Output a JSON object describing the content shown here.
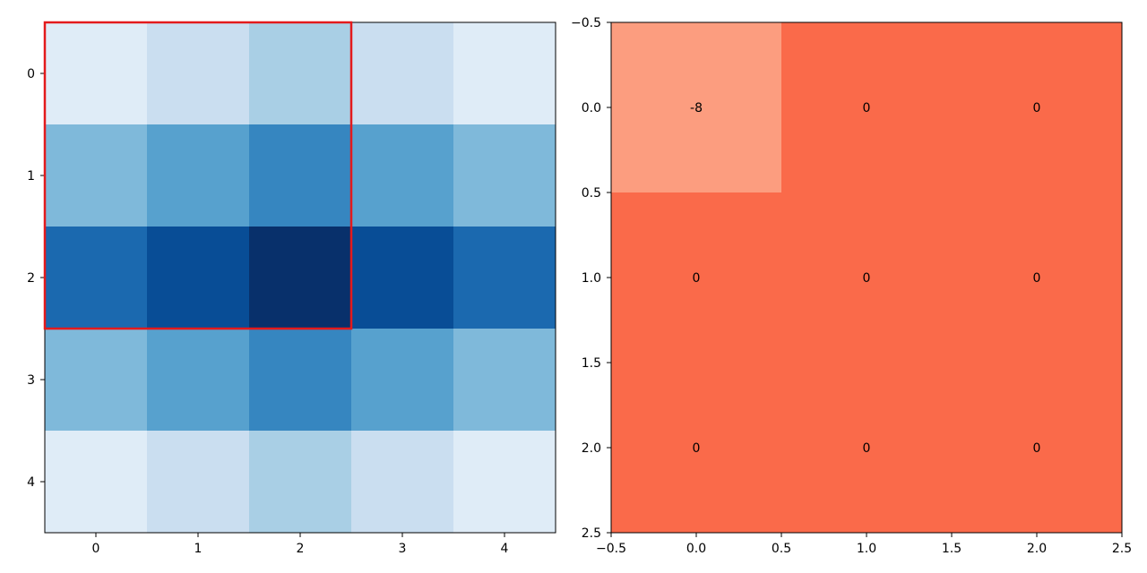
{
  "chart_data": [
    {
      "type": "heatmap",
      "colormap": "Blues",
      "rows": [
        "0",
        "1",
        "2",
        "3",
        "4"
      ],
      "cols": [
        "0",
        "1",
        "2",
        "3",
        "4"
      ],
      "values": [
        [
          1,
          2,
          3,
          2,
          1
        ],
        [
          4,
          5,
          6,
          5,
          4
        ],
        [
          7,
          8,
          9,
          8,
          7
        ],
        [
          4,
          5,
          6,
          5,
          4
        ],
        [
          1,
          2,
          3,
          2,
          1
        ]
      ],
      "x_ticks": [
        "0",
        "1",
        "2",
        "3",
        "4"
      ],
      "y_ticks": [
        "0",
        "1",
        "2",
        "3",
        "4"
      ],
      "xlim": [
        -0.5,
        4.5
      ],
      "ylim": [
        4.5,
        -0.5
      ],
      "highlight_box": {
        "x_from": -0.5,
        "x_to": 2.5,
        "y_from": -0.5,
        "y_to": 2.5,
        "color": "#e31a1c"
      },
      "grid": false
    },
    {
      "type": "heatmap",
      "colormap": "Reds",
      "rows": [
        "0.0",
        "1.0",
        "2.0"
      ],
      "cols": [
        "0.0",
        "1.0",
        "2.0"
      ],
      "values": [
        [
          -8,
          0,
          0
        ],
        [
          0,
          0,
          0
        ],
        [
          0,
          0,
          0
        ]
      ],
      "cell_labels": [
        [
          "-8",
          "0",
          "0"
        ],
        [
          "0",
          "0",
          "0"
        ],
        [
          "0",
          "0",
          "0"
        ]
      ],
      "cell_colors": [
        [
          "#fc9d7f",
          "#fa6a4a",
          "#fa6a4a"
        ],
        [
          "#fa6a4a",
          "#fa6a4a",
          "#fa6a4a"
        ],
        [
          "#fa6a4a",
          "#fa6a4a",
          "#fa6a4a"
        ]
      ],
      "x_ticks": [
        "−0.5",
        "0.0",
        "0.5",
        "1.0",
        "1.5",
        "2.0",
        "2.5"
      ],
      "y_ticks": [
        "−0.5",
        "0.0",
        "0.5",
        "1.0",
        "1.5",
        "2.0",
        "2.5"
      ],
      "xlim": [
        -0.5,
        2.5
      ],
      "ylim": [
        2.5,
        -0.5
      ],
      "grid": false
    }
  ]
}
